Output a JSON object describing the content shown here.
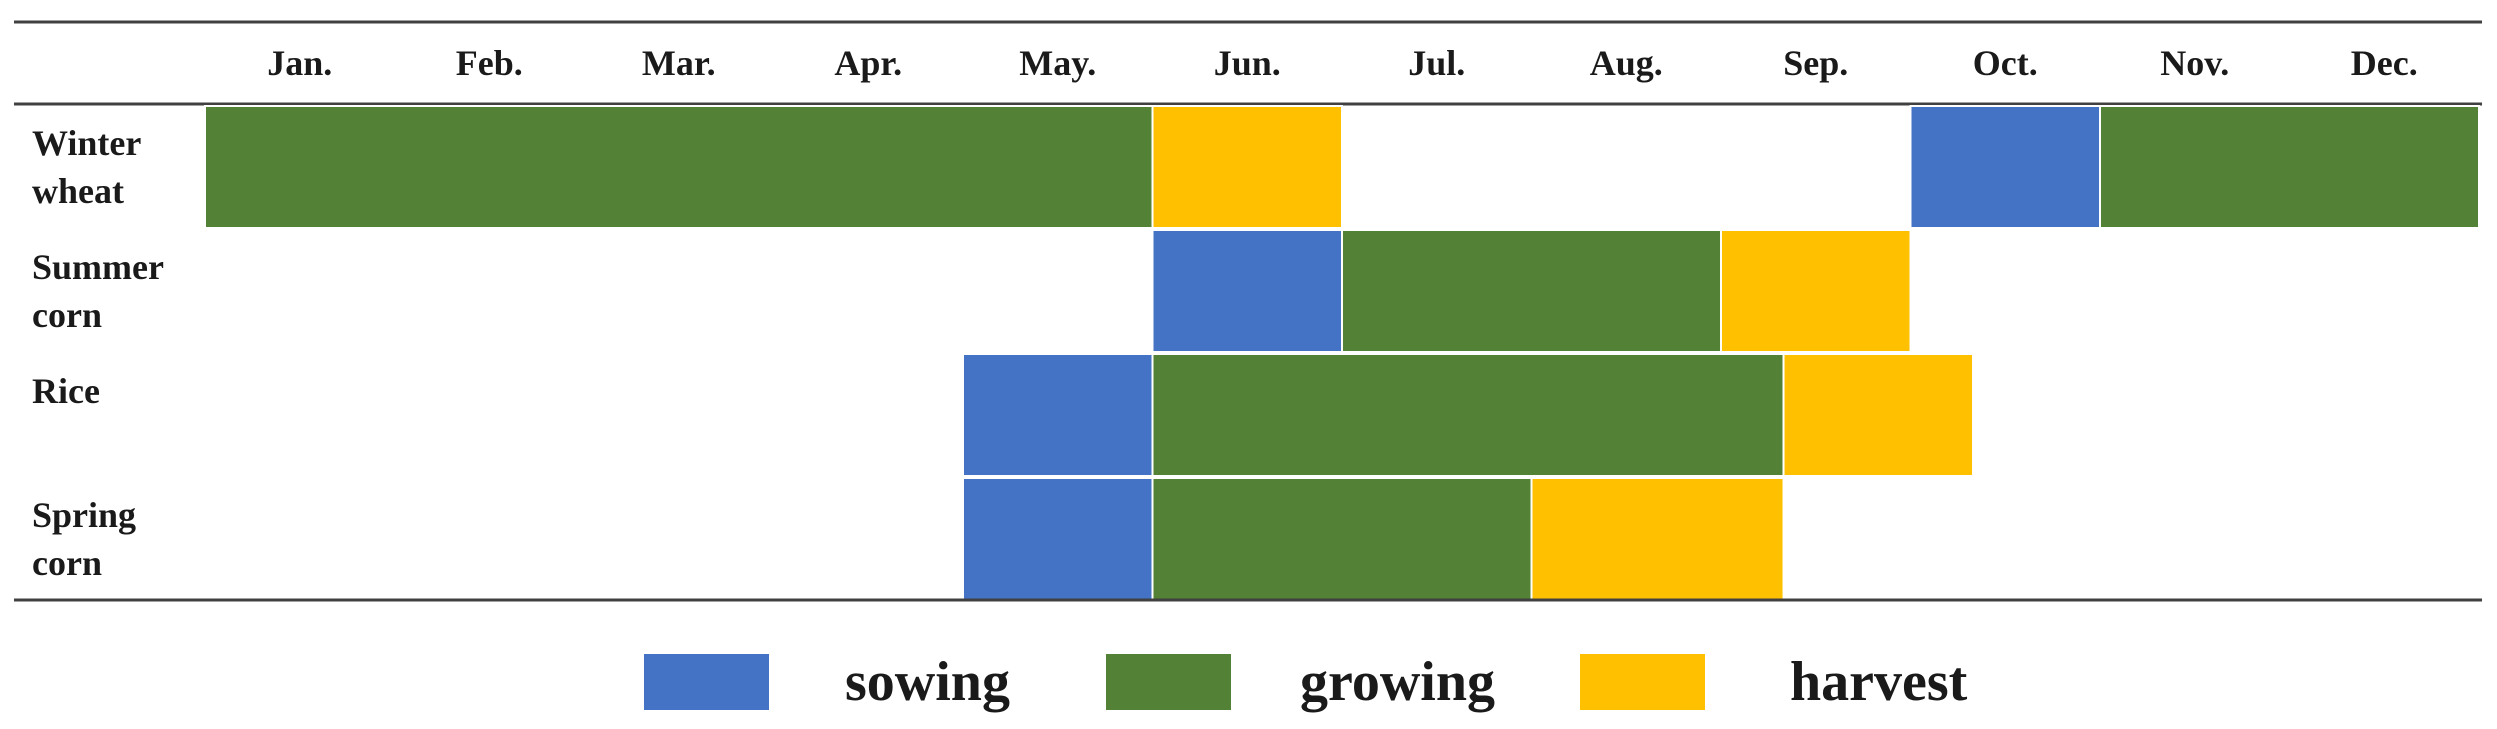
{
  "chart_data": {
    "type": "gantt",
    "months": [
      "Jan.",
      "Feb.",
      "Mar.",
      "Apr.",
      "May.",
      "Jun.",
      "Jul.",
      "Aug.",
      "Sep.",
      "Oct.",
      "Nov.",
      "Dec."
    ],
    "phases": [
      {
        "key": "sowing",
        "label": "sowing",
        "color": "#4472C4"
      },
      {
        "key": "growing",
        "label": "growing",
        "color": "#538135"
      },
      {
        "key": "harvest",
        "label": "harvest",
        "color": "#FFC000"
      }
    ],
    "crops": [
      {
        "label_lines": [
          "Winter",
          "wheat"
        ],
        "segments": [
          {
            "phase": "growing",
            "start": 0,
            "end": 5
          },
          {
            "phase": "harvest",
            "start": 5,
            "end": 6
          },
          {
            "phase": "sowing",
            "start": 9,
            "end": 10
          },
          {
            "phase": "growing",
            "start": 10,
            "end": 12
          }
        ]
      },
      {
        "label_lines": [
          "Summer",
          "corn"
        ],
        "segments": [
          {
            "phase": "sowing",
            "start": 5,
            "end": 6
          },
          {
            "phase": "growing",
            "start": 6,
            "end": 8
          },
          {
            "phase": "harvest",
            "start": 8,
            "end": 9
          }
        ]
      },
      {
        "label_lines": [
          "Rice"
        ],
        "segments": [
          {
            "phase": "sowing",
            "start": 4,
            "end": 5
          },
          {
            "phase": "growing",
            "start": 5,
            "end": 8.33
          },
          {
            "phase": "harvest",
            "start": 8.33,
            "end": 9.33
          }
        ]
      },
      {
        "label_lines": [
          "Spring",
          "corn"
        ],
        "segments": [
          {
            "phase": "sowing",
            "start": 4,
            "end": 5
          },
          {
            "phase": "growing",
            "start": 5,
            "end": 7
          },
          {
            "phase": "harvest",
            "start": 7,
            "end": 8.33
          }
        ]
      }
    ]
  }
}
